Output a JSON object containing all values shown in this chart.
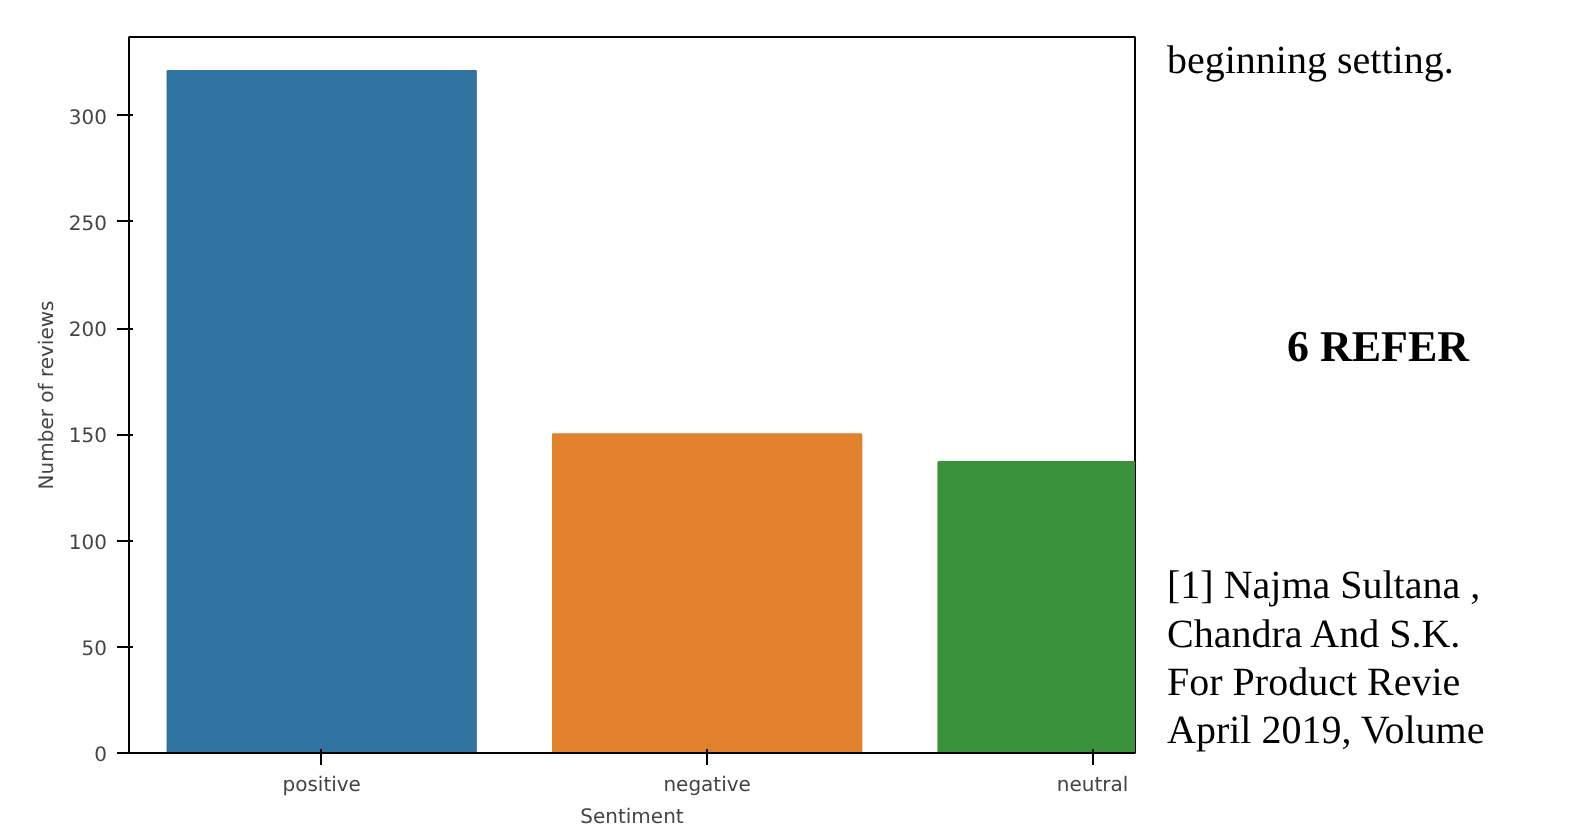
{
  "chart_data": {
    "type": "bar",
    "xlabel": "Sentiment",
    "ylabel": "Number of reviews",
    "categories": [
      "positive",
      "negative",
      "neutral"
    ],
    "values": [
      321,
      150,
      137
    ],
    "colors": [
      "#3274a1",
      "#e1812c",
      "#3a923a"
    ],
    "ylim": [
      0,
      337
    ],
    "yticks": [
      0,
      50,
      100,
      150,
      200,
      250,
      300
    ],
    "grid": false,
    "annotations": [
      "beginning setting.",
      "6    REFER",
      "[1] Najma Sultana ,",
      "Chandra And S.K.",
      "For  Product  Revie",
      "April 2019, Volume"
    ]
  }
}
